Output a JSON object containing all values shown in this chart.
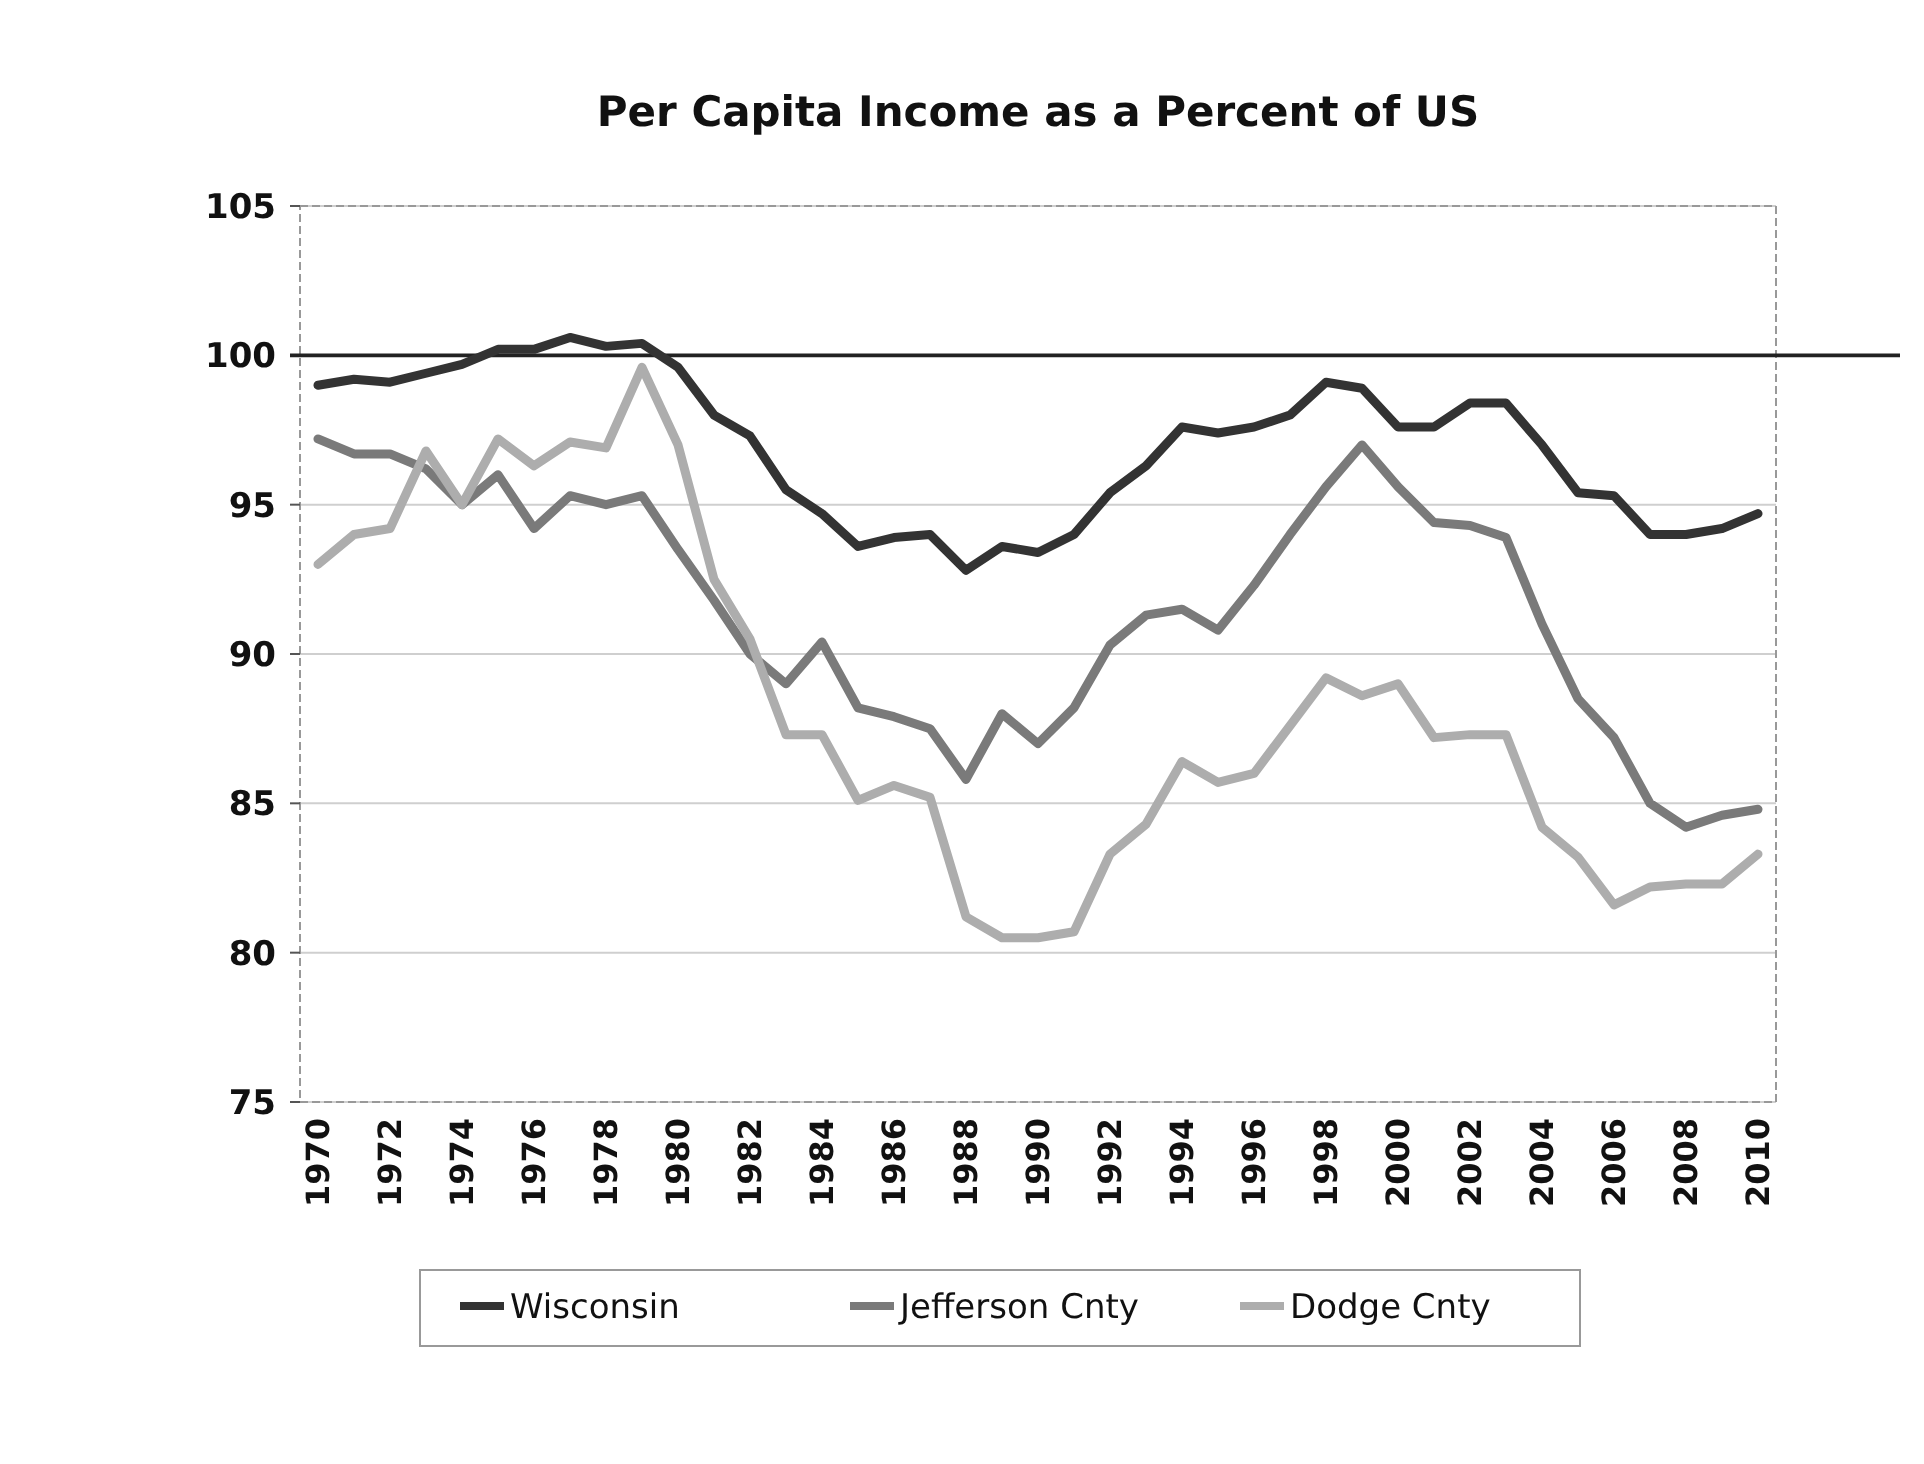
{
  "chart_data": {
    "type": "line",
    "title": "Per Capita Income as a Percent of US",
    "categories": [
      "1970",
      null,
      "1972",
      null,
      "1974",
      null,
      "1976",
      null,
      "1978",
      null,
      "1980",
      null,
      "1982",
      null,
      "1984",
      null,
      "1986",
      null,
      "1988",
      null,
      "1990",
      null,
      "1992",
      null,
      "1994",
      null,
      "1996",
      null,
      "1998",
      null,
      "2000",
      null,
      "2002",
      null,
      "2004",
      null,
      "2006",
      null,
      "2008",
      null,
      "2010"
    ],
    "series": [
      {
        "name": "Wisconsin",
        "color": "#333333",
        "values": [
          99,
          99.2,
          99.1,
          99.4,
          99.7,
          100.2,
          100.2,
          100.6,
          100.3,
          100.4,
          99.6,
          98,
          97.3,
          95.5,
          94.7,
          93.6,
          93.9,
          94,
          92.8,
          93.6,
          93.4,
          94,
          95.4,
          96.3,
          97.6,
          97.4,
          97.6,
          98,
          99.1,
          98.9,
          97.6,
          97.6,
          98.4,
          98.4,
          97,
          95.4,
          95.3,
          94,
          94,
          94.2,
          94.7
        ]
      },
      {
        "name": "Jefferson Cnty",
        "color": "#7a7a7a",
        "values": [
          97.2,
          96.7,
          96.7,
          96.2,
          95,
          96,
          94.2,
          95.3,
          95,
          95.3,
          93.5,
          91.8,
          90,
          89,
          90.4,
          88.2,
          87.9,
          87.5,
          85.8,
          88,
          87,
          88.2,
          90.3,
          91.3,
          91.5,
          90.8,
          92.3,
          94,
          95.6,
          97,
          95.6,
          94.4,
          94.3,
          93.9,
          91,
          88.5,
          87.2,
          85,
          84.2,
          84.6,
          84.8
        ]
      },
      {
        "name": "Dodge Cnty",
        "color": "#adadad",
        "values": [
          93,
          94,
          94.2,
          96.8,
          95,
          97.2,
          96.3,
          97.1,
          96.9,
          99.6,
          97,
          92.5,
          90.5,
          87.3,
          87.3,
          85.1,
          85.6,
          85.2,
          81.2,
          80.5,
          80.5,
          80.7,
          83.3,
          84.3,
          86.4,
          85.7,
          86,
          87.6,
          89.2,
          88.6,
          89,
          87.2,
          87.3,
          87.3,
          84.2,
          83.2,
          81.6,
          82.2,
          82.3,
          82.3,
          83.3
        ]
      }
    ],
    "ylim": [
      75,
      105
    ],
    "yticks": [
      75,
      80,
      85,
      90,
      95,
      100,
      105
    ],
    "grid": "y",
    "legend": "bottom",
    "marker": "none",
    "line_style": "solid",
    "ref_lines": [
      {
        "axis": "y",
        "value": 100,
        "color": "#222222"
      }
    ]
  }
}
